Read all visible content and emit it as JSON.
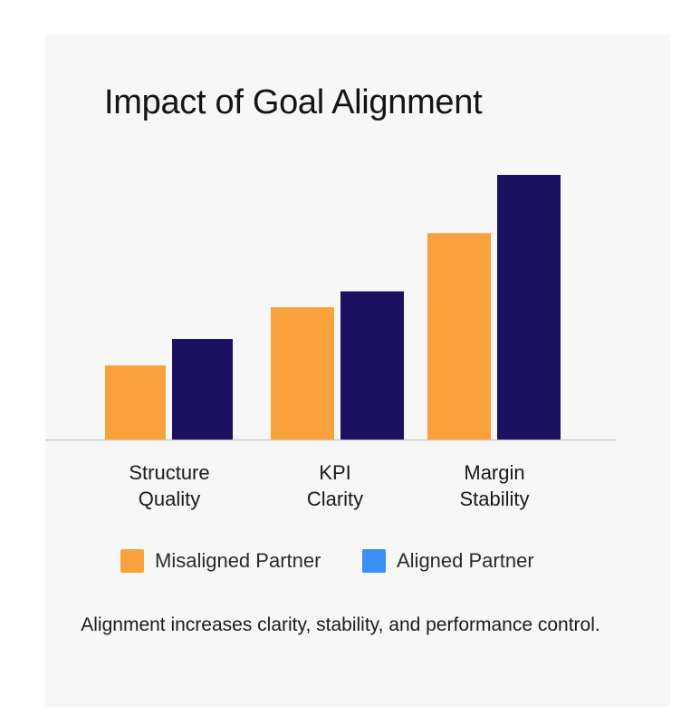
{
  "chart_data": {
    "type": "bar",
    "title": "Impact of Goal Alignment",
    "categories": [
      "Structure Quality",
      "KPI Clarity",
      "Margin Stability"
    ],
    "category_lines": [
      [
        "Structure",
        "Quality"
      ],
      [
        "KPI",
        "Clarity"
      ],
      [
        "Margin",
        "Stability"
      ]
    ],
    "series": [
      {
        "name": "Misaligned Partner",
        "values": [
          28,
          50,
          78
        ],
        "color": "#f9a23c"
      },
      {
        "name": "Aligned Partner",
        "values": [
          38,
          56,
          100
        ],
        "color": "#1b1160"
      }
    ],
    "legend_swatch_colors": [
      "#f9a23c",
      "#3a8ef5"
    ],
    "ylim": [
      0,
      100
    ],
    "grid": false,
    "legend_position": "bottom",
    "xlabel": "",
    "ylabel": ""
  },
  "caption": "Alignment increases clarity, stability, and performance control."
}
